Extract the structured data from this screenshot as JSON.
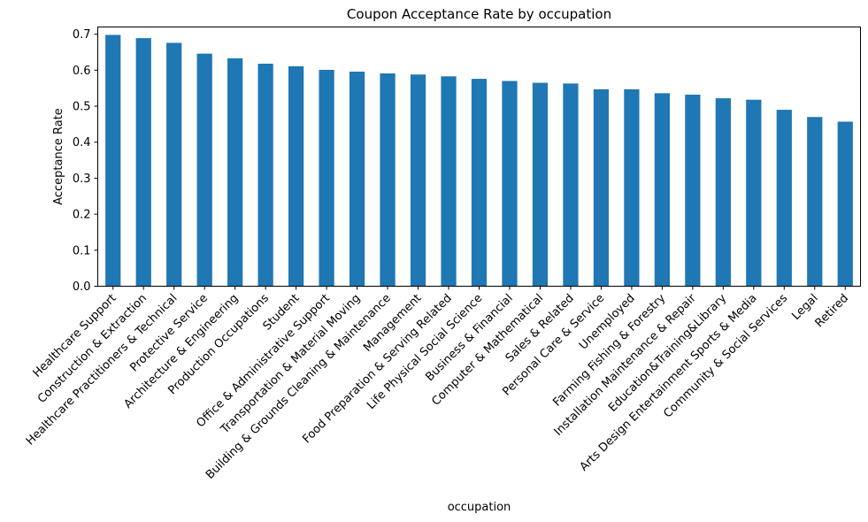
{
  "chart_data": {
    "type": "bar",
    "title": "Coupon Acceptance Rate by occupation",
    "xlabel": "occupation",
    "ylabel": "Acceptance Rate",
    "ylim": [
      0,
      0.72
    ],
    "yticks": [
      "0.0",
      "0.1",
      "0.2",
      "0.3",
      "0.4",
      "0.5",
      "0.6",
      "0.7"
    ],
    "ytick_values": [
      0,
      0.1,
      0.2,
      0.3,
      0.4,
      0.5,
      0.6,
      0.7
    ],
    "grid": false,
    "bar_color": "#1f77b4",
    "categories": [
      "Healthcare Support",
      "Construction & Extraction",
      "Healthcare Practitioners & Technical",
      "Protective Service",
      "Architecture & Engineering",
      "Production Occupations",
      "Student",
      "Office & Administrative Support",
      "Transportation & Material Moving",
      "Building & Grounds Cleaning & Maintenance",
      "Management",
      "Food Preparation & Serving Related",
      "Life Physical Social Science",
      "Business & Financial",
      "Computer & Mathematical",
      "Sales & Related",
      "Personal Care & Service",
      "Unemployed",
      "Farming Fishing & Forestry",
      "Installation Maintenance & Repair",
      "Education&Training&Library",
      "Arts Design Entertainment Sports & Media",
      "Community & Social Services",
      "Legal",
      "Retired"
    ],
    "values": [
      0.698,
      0.689,
      0.676,
      0.646,
      0.633,
      0.618,
      0.611,
      0.601,
      0.596,
      0.591,
      0.588,
      0.583,
      0.576,
      0.57,
      0.565,
      0.563,
      0.547,
      0.547,
      0.536,
      0.532,
      0.522,
      0.518,
      0.49,
      0.47,
      0.457
    ]
  }
}
